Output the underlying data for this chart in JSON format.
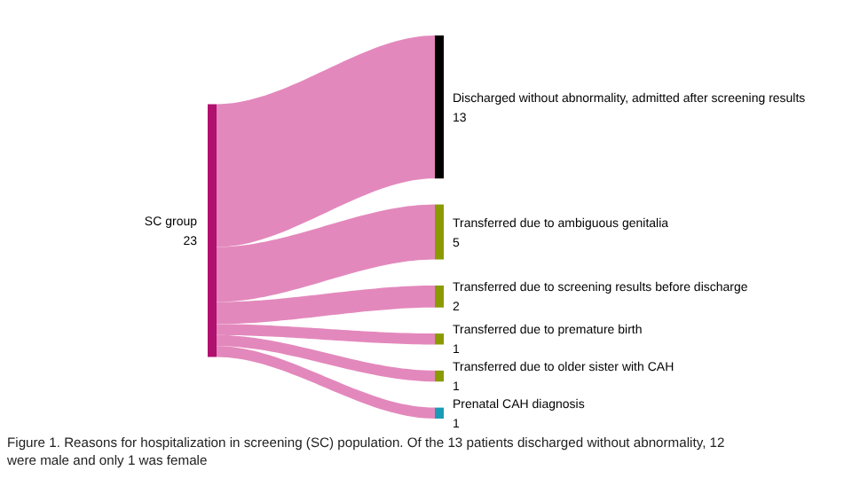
{
  "chart_data": {
    "type": "other",
    "categories": [
      "SC group",
      "Discharged without abnormality, admitted after screening results",
      "Transferred due to ambiguous genitalia",
      "Transferred due to screening results before discharge",
      "Transferred due to premature birth",
      "Transferred due to older sister with CAH",
      "Prenatal CAH diagnosis"
    ],
    "values": [
      23,
      13,
      5,
      2,
      1,
      1,
      1
    ],
    "colors": [
      "#b0106e",
      "#000000",
      "#8a9a00",
      "#8a9a00",
      "#8a9a00",
      "#8a9a00",
      "#1a9bb5"
    ],
    "color": "#e07bb5",
    "data_labels": true,
    "annotations": [
      "Figure 1. Reasons for hospitalization in screening (SC) population. Of the 13 patients discharged without abnormality, 12 were male and only 1 was female"
    ]
  }
}
